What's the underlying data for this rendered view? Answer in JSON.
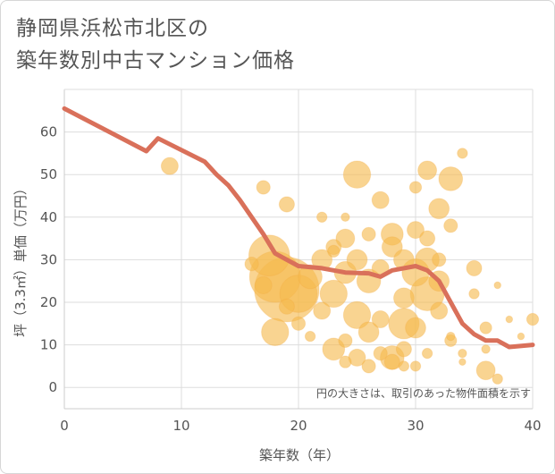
{
  "title_lines": [
    "静岡県浜松市北区の",
    "築年数別中古マンション価格"
  ],
  "chart_data": {
    "type": "scatter",
    "title": "静岡県浜松市北区の築年数別中古マンション価格",
    "xlabel": "築年数（年）",
    "ylabel": "坪（3.3㎡）単価（万円）",
    "xlim": [
      0,
      40
    ],
    "ylim": [
      -5,
      70
    ],
    "x_ticks": [
      "0",
      "10",
      "20",
      "30",
      "40"
    ],
    "y_ticks": [
      "0",
      "10",
      "20",
      "30",
      "40",
      "50",
      "60"
    ],
    "grid": true,
    "annotation": "円の大きさは、取引のあった物件面積を示す",
    "colors": {
      "bubble": "#f5b94e",
      "line": "#d9705a",
      "grid": "#dddddd"
    },
    "series": [
      {
        "kind": "line",
        "points": [
          [
            0,
            65.5
          ],
          [
            7,
            55.5
          ],
          [
            8,
            58.5
          ],
          [
            12,
            53
          ],
          [
            13,
            50
          ],
          [
            14,
            47.5
          ],
          [
            15,
            44
          ],
          [
            16,
            40
          ],
          [
            17,
            36
          ],
          [
            18,
            31.5
          ],
          [
            19,
            30
          ],
          [
            20,
            28.5
          ],
          [
            22,
            28
          ],
          [
            24,
            27
          ],
          [
            26,
            26.8
          ],
          [
            27,
            26
          ],
          [
            28,
            27.5
          ],
          [
            30,
            28.5
          ],
          [
            31,
            27.5
          ],
          [
            32,
            25
          ],
          [
            33,
            20
          ],
          [
            34,
            15
          ],
          [
            35,
            12.5
          ],
          [
            36,
            11
          ],
          [
            37,
            11
          ],
          [
            38,
            9.5
          ],
          [
            40,
            10
          ]
        ]
      },
      {
        "kind": "bubble",
        "points": [
          [
            9,
            52,
            10
          ],
          [
            17,
            47,
            8
          ],
          [
            19,
            43,
            9
          ],
          [
            25,
            50,
            16
          ],
          [
            27,
            44,
            10
          ],
          [
            31,
            51,
            11
          ],
          [
            32,
            42,
            12
          ],
          [
            33,
            49,
            14
          ],
          [
            34,
            55,
            6
          ],
          [
            30,
            47,
            7
          ],
          [
            17.5,
            31,
            24
          ],
          [
            18,
            26,
            30
          ],
          [
            19,
            23,
            38
          ],
          [
            20,
            22,
            22
          ],
          [
            21,
            26,
            14
          ],
          [
            22,
            30,
            12
          ],
          [
            23,
            22,
            16
          ],
          [
            24,
            27,
            13
          ],
          [
            25,
            30,
            12
          ],
          [
            26,
            25,
            14
          ],
          [
            27,
            28,
            10
          ],
          [
            28,
            33,
            12
          ],
          [
            29,
            30,
            12
          ],
          [
            30,
            27,
            16
          ],
          [
            31,
            22,
            20
          ],
          [
            32,
            25,
            12
          ],
          [
            23,
            33,
            9
          ],
          [
            24,
            35,
            11
          ],
          [
            26,
            36,
            8
          ],
          [
            28,
            36,
            13
          ],
          [
            30,
            37,
            10
          ],
          [
            31,
            35,
            9
          ],
          [
            33,
            38,
            8
          ],
          [
            25,
            17,
            16
          ],
          [
            27,
            16,
            10
          ],
          [
            29,
            15,
            18
          ],
          [
            30,
            14,
            12
          ],
          [
            32,
            18,
            10
          ],
          [
            26,
            13,
            12
          ],
          [
            24,
            11,
            8
          ],
          [
            23,
            9,
            13
          ],
          [
            25,
            7,
            10
          ],
          [
            27,
            8,
            8
          ],
          [
            28,
            7,
            14
          ],
          [
            29,
            9,
            9
          ],
          [
            22,
            18,
            10
          ],
          [
            20,
            15,
            8
          ],
          [
            18,
            13,
            16
          ],
          [
            16,
            29,
            8
          ],
          [
            17,
            24,
            10
          ],
          [
            19,
            19,
            9
          ],
          [
            21,
            12,
            6
          ],
          [
            24,
            6,
            7
          ],
          [
            26,
            5,
            8
          ],
          [
            28,
            6,
            9
          ],
          [
            30,
            5,
            6
          ],
          [
            31,
            8,
            6
          ],
          [
            33,
            11,
            7
          ],
          [
            35,
            28,
            9
          ],
          [
            35,
            22,
            6
          ],
          [
            36,
            14,
            7
          ],
          [
            36,
            4,
            11
          ],
          [
            37,
            2,
            6
          ],
          [
            36,
            9,
            5
          ],
          [
            40,
            16,
            7
          ],
          [
            39,
            12,
            4
          ],
          [
            38,
            16,
            4
          ],
          [
            34,
            8,
            5
          ],
          [
            31,
            30,
            14
          ],
          [
            29,
            21,
            12
          ],
          [
            32,
            30,
            8
          ],
          [
            33,
            12,
            5
          ],
          [
            29,
            5,
            6
          ],
          [
            22,
            40,
            6
          ],
          [
            24,
            40,
            5
          ],
          [
            23,
            32,
            7
          ],
          [
            34,
            6,
            4
          ],
          [
            37,
            24,
            4
          ]
        ]
      }
    ]
  }
}
